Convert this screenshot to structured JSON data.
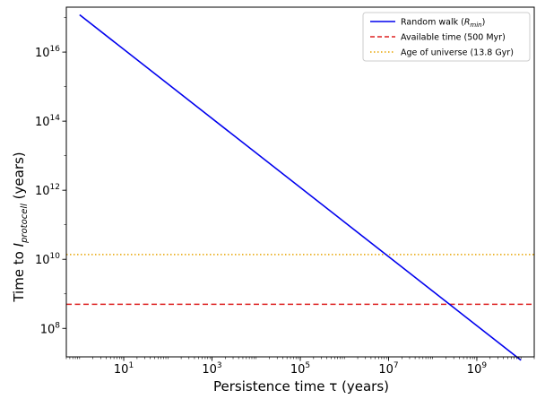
{
  "chart_data": {
    "type": "line",
    "xscale": "log",
    "yscale": "log",
    "xlim": [
      0.5,
      20000000000.0
    ],
    "ylim": [
      15000000.0,
      2e+17
    ],
    "xlabel": {
      "text": "Persistence time τ (years)"
    },
    "ylabel": {
      "prefix": "Time to ",
      "symbol": "I",
      "subscript": "protocell",
      "suffix": " (years)"
    },
    "x_ticks": [
      {
        "value": 10,
        "base": "10",
        "exp": "1"
      },
      {
        "value": 1000,
        "base": "10",
        "exp": "3"
      },
      {
        "value": 100000,
        "base": "10",
        "exp": "5"
      },
      {
        "value": 10000000,
        "base": "10",
        "exp": "7"
      },
      {
        "value": 1000000000,
        "base": "10",
        "exp": "9"
      }
    ],
    "y_ticks": [
      {
        "value": 100000000.0,
        "base": "10",
        "exp": "8"
      },
      {
        "value": 10000000000.0,
        "base": "10",
        "exp": "10"
      },
      {
        "value": 1000000000000.0,
        "base": "10",
        "exp": "12"
      },
      {
        "value": 100000000000000.0,
        "base": "10",
        "exp": "14"
      },
      {
        "value": 1e+16,
        "base": "10",
        "exp": "16"
      }
    ],
    "series": [
      {
        "name": "Random walk",
        "name_parts": {
          "main": "Random walk (",
          "symbol": "R",
          "subscript": "min",
          "tail": ")"
        },
        "style": "solid",
        "color": "#0000ee",
        "x": [
          1,
          10000000000
        ],
        "y": [
          1.2e+17,
          12000000.0
        ]
      },
      {
        "name": "Available time (500 Myr)",
        "style": "dashed",
        "color": "#dd2020",
        "y_const": 500000000
      },
      {
        "name": "Age of universe (13.8 Gyr)",
        "style": "dotted",
        "color": "#e8a400",
        "y_const": 13800000000
      }
    ],
    "legend": {
      "placement": "top-right"
    },
    "grid": false
  }
}
